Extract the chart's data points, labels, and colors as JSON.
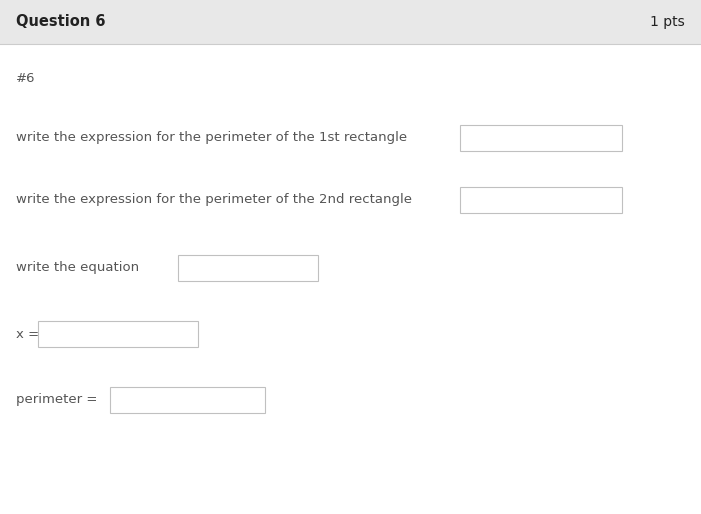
{
  "bg_color": "#ffffff",
  "header_bg": "#e8e8e8",
  "header_text": "Question 6",
  "pts_text": "1 pts",
  "header_font_size": 10.5,
  "pts_font_size": 10,
  "label_font_size": 9.5,
  "hash_label": "#6",
  "line1_text": "write the expression for the perimeter of the 1st rectangle",
  "line2_text": "write the expression for the perimeter of the 2nd rectangle",
  "line3_text": "write the equation",
  "line4_text": "x =",
  "line5_text": "perimeter =",
  "box_border_color": "#c0c0c0",
  "text_color": "#555555",
  "header_text_color": "#222222",
  "divider_color": "#cccccc",
  "fig_w": 7.01,
  "fig_h": 5.14,
  "dpi": 100
}
